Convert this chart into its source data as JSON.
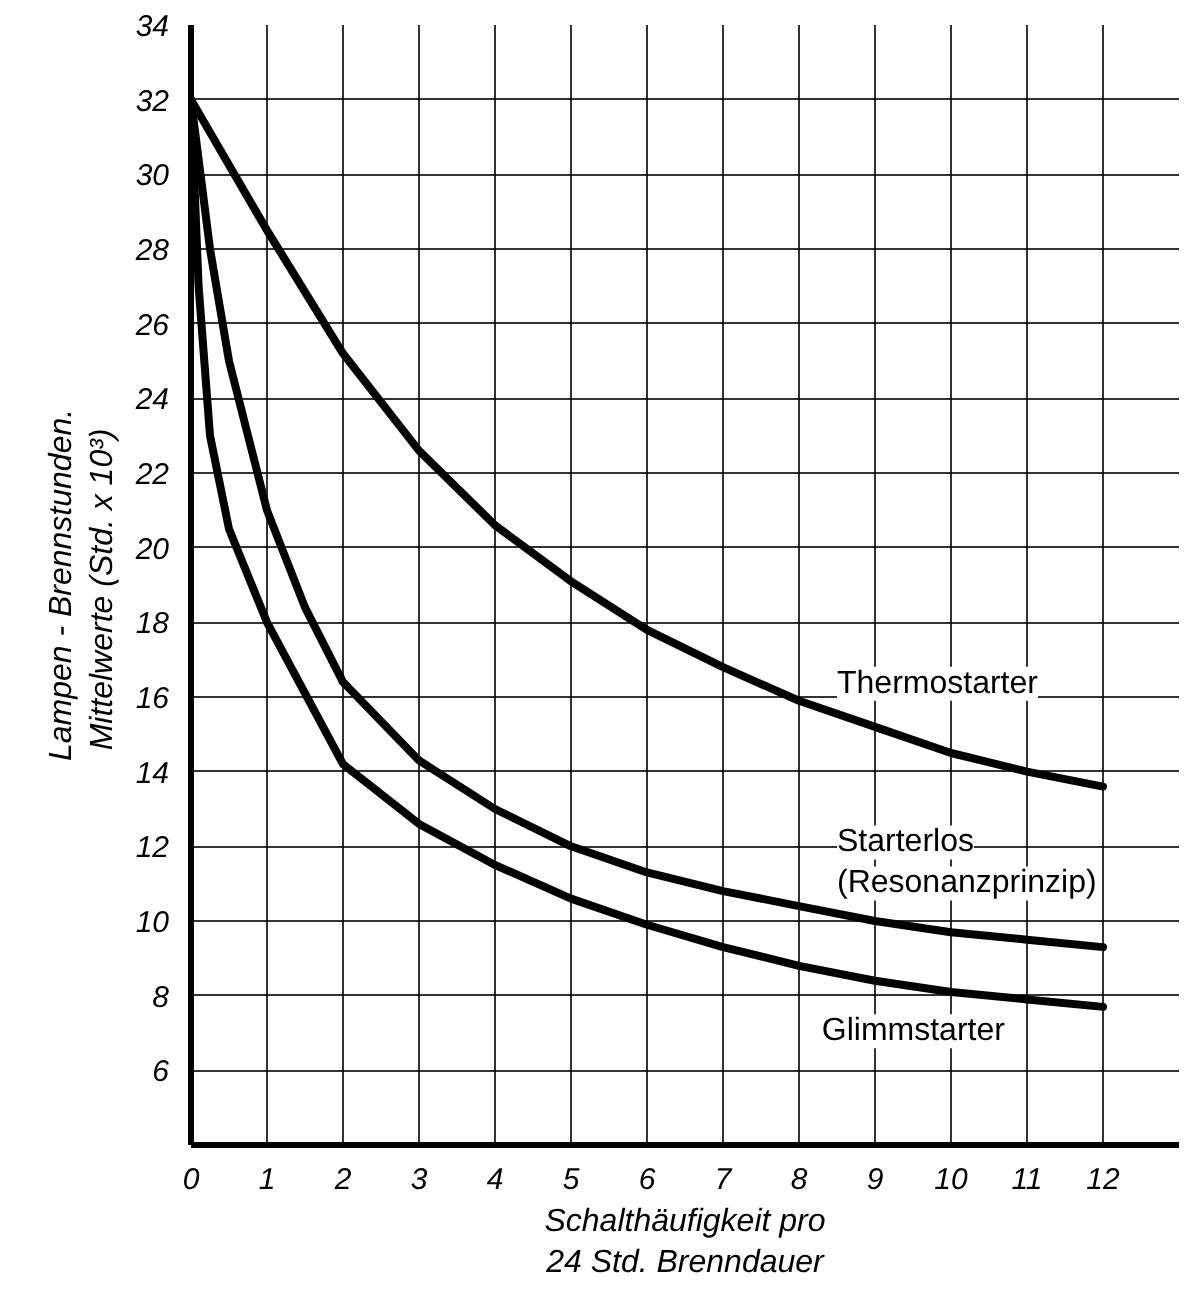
{
  "chart_data": {
    "type": "line",
    "xlabel": "Schalthäufigkeit pro\n24 Std. Brenndauer",
    "ylabel": "Lampen - Brennstunden.\nMittelwerte  (Std. x 10³)",
    "xlim": [
      0,
      13
    ],
    "ylim": [
      4,
      34
    ],
    "xticks": [
      0,
      1,
      2,
      3,
      4,
      5,
      6,
      7,
      8,
      9,
      10,
      11,
      12
    ],
    "yticks": [
      6,
      8,
      10,
      12,
      14,
      16,
      18,
      20,
      22,
      24,
      26,
      28,
      30,
      32,
      34
    ],
    "grid": true,
    "marker": "none",
    "line_style": "solid",
    "series": [
      {
        "name": "Thermostarter",
        "color": "#000000",
        "x": [
          0,
          1,
          2,
          3,
          4,
          5,
          6,
          7,
          8,
          9,
          10,
          11,
          12
        ],
        "values": [
          32,
          28.5,
          25.2,
          22.6,
          20.6,
          19.1,
          17.8,
          16.8,
          15.9,
          15.2,
          14.5,
          14.0,
          13.6
        ]
      },
      {
        "name": "Starterlos\n(Resonanzprinzip)",
        "color": "#000000",
        "x": [
          0,
          0.25,
          0.5,
          1,
          1.5,
          2,
          3,
          4,
          5,
          6,
          7,
          8,
          9,
          10,
          11,
          12
        ],
        "values": [
          32,
          28,
          25,
          21,
          18.4,
          16.4,
          14.3,
          13.0,
          12.0,
          11.3,
          10.8,
          10.4,
          10.0,
          9.7,
          9.5,
          9.3
        ]
      },
      {
        "name": "Glimmstarter",
        "color": "#000000",
        "x": [
          0,
          0.1,
          0.25,
          0.5,
          1,
          2,
          3,
          4,
          5,
          6,
          7,
          8,
          9,
          10,
          11,
          12
        ],
        "values": [
          32,
          27,
          23,
          20.5,
          18,
          14.2,
          12.6,
          11.5,
          10.6,
          9.9,
          9.3,
          8.8,
          8.4,
          8.1,
          7.9,
          7.7
        ]
      }
    ]
  }
}
